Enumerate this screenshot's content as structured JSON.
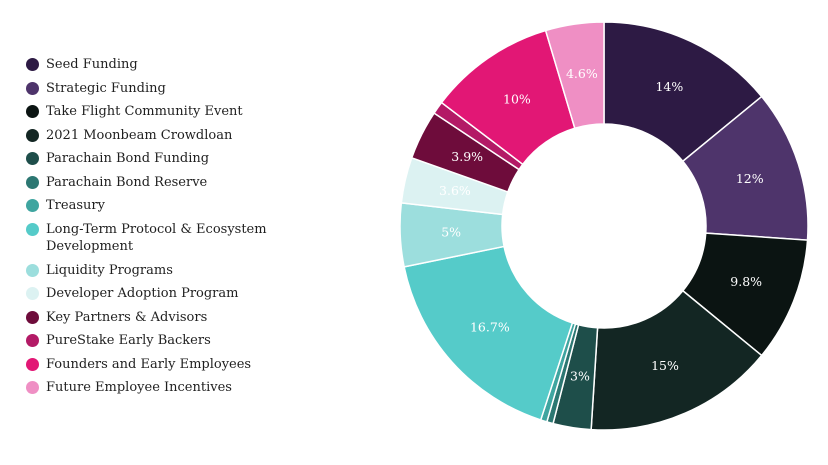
{
  "chart_data": {
    "type": "pie",
    "title": "",
    "categories": [
      "Seed Funding",
      "Strategic Funding",
      "Take Flight Community Event",
      "2021 Moonbeam Crowdloan",
      "Parachain Bond Funding",
      "Parachain Bond Reserve",
      "Treasury",
      "Long-Term Protocol & Ecosystem Development",
      "Liquidity Programs",
      "Developer Adoption Program",
      "Key Partners & Advisors",
      "PureStake Early Backers",
      "Founders and Early Employees",
      "Future Employee Incentives"
    ],
    "values": [
      14,
      12,
      9.8,
      15,
      3,
      0.5,
      0.5,
      16.7,
      5,
      3.6,
      3.9,
      1,
      10,
      4.6
    ],
    "labels": [
      "14%",
      "12%",
      "9.8%",
      "15%",
      "3%",
      "",
      "",
      "16.7%",
      "5%",
      "3.6%",
      "3.9%",
      "",
      "10%",
      "4.6%"
    ],
    "colors": [
      "#2d1a44",
      "#4e346b",
      "#0b1412",
      "#132623",
      "#1e4e4a",
      "#2c7772",
      "#3fa5a0",
      "#55cbc9",
      "#9cdedd",
      "#dcf2f2",
      "#6e0c3b",
      "#b31a66",
      "#e21775",
      "#ef8fc4"
    ],
    "label_colors": [
      "#ffffff",
      "#ffffff",
      "#ffffff",
      "#ffffff",
      "#ffffff",
      "#ffffff",
      "#ffffff",
      "#ffffff",
      "#ffffff",
      "#ffffff",
      "#ffffff",
      "#ffffff",
      "#ffffff",
      "#ffffff"
    ],
    "start_angle_deg": 0,
    "direction": "clockwise",
    "legend_position": "left"
  }
}
